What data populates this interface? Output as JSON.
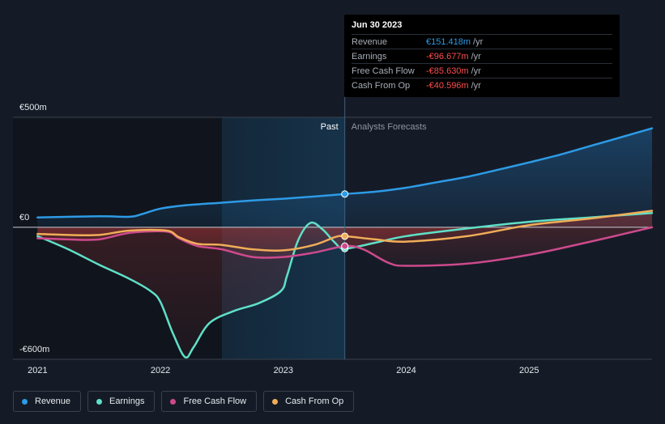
{
  "chart_data": {
    "type": "line",
    "y_tick_labels": [
      "€500m",
      "€0",
      "-€600m"
    ],
    "y_tick_values": [
      500,
      0,
      -600
    ],
    "x_tick_labels": [
      "2021",
      "2022",
      "2023",
      "2024",
      "2025"
    ],
    "x_tick_values": [
      2021,
      2022,
      2023,
      2024,
      2025
    ],
    "xlim": [
      2020.8,
      2026.0
    ],
    "ylim": [
      -600,
      500
    ],
    "past_label": "Past",
    "forecast_label": "Analysts Forecasts",
    "divider_x": 2023.5,
    "past_shade_start": 2022.5,
    "series": [
      {
        "name": "Revenue",
        "color": "#2d9be6",
        "points": [
          [
            2021.0,
            45
          ],
          [
            2021.5,
            50
          ],
          [
            2021.75,
            48
          ],
          [
            2021.85,
            60
          ],
          [
            2022.0,
            85
          ],
          [
            2022.2,
            100
          ],
          [
            2022.5,
            112
          ],
          [
            2022.75,
            122
          ],
          [
            2023.0,
            130
          ],
          [
            2023.25,
            140
          ],
          [
            2023.5,
            151.4
          ],
          [
            2023.75,
            162
          ],
          [
            2024.0,
            180
          ],
          [
            2024.25,
            205
          ],
          [
            2024.5,
            230
          ],
          [
            2024.75,
            262
          ],
          [
            2025.0,
            295
          ],
          [
            2025.25,
            330
          ],
          [
            2025.5,
            370
          ],
          [
            2025.75,
            410
          ],
          [
            2026.0,
            450
          ]
        ]
      },
      {
        "name": "Earnings",
        "color": "#5fe0c8",
        "points": [
          [
            2021.0,
            -40
          ],
          [
            2021.25,
            -100
          ],
          [
            2021.5,
            -170
          ],
          [
            2021.75,
            -235
          ],
          [
            2021.92,
            -290
          ],
          [
            2022.0,
            -340
          ],
          [
            2022.1,
            -480
          ],
          [
            2022.2,
            -590
          ],
          [
            2022.27,
            -545
          ],
          [
            2022.4,
            -435
          ],
          [
            2022.6,
            -380
          ],
          [
            2022.8,
            -345
          ],
          [
            2022.98,
            -290
          ],
          [
            2023.03,
            -220
          ],
          [
            2023.12,
            -60
          ],
          [
            2023.22,
            20
          ],
          [
            2023.32,
            -10
          ],
          [
            2023.42,
            -70
          ],
          [
            2023.5,
            -96.7
          ],
          [
            2023.75,
            -70
          ],
          [
            2024.0,
            -40
          ],
          [
            2024.5,
            -5
          ],
          [
            2025.0,
            25
          ],
          [
            2025.5,
            45
          ],
          [
            2026.0,
            65
          ]
        ]
      },
      {
        "name": "Free Cash Flow",
        "color": "#cc4a8c",
        "points": [
          [
            2021.0,
            -50
          ],
          [
            2021.25,
            -55
          ],
          [
            2021.5,
            -55
          ],
          [
            2021.75,
            -25
          ],
          [
            2022.05,
            -20
          ],
          [
            2022.15,
            -50
          ],
          [
            2022.3,
            -85
          ],
          [
            2022.5,
            -100
          ],
          [
            2022.75,
            -135
          ],
          [
            2023.0,
            -135
          ],
          [
            2023.25,
            -115
          ],
          [
            2023.5,
            -85.6
          ],
          [
            2023.65,
            -100
          ],
          [
            2023.85,
            -160
          ],
          [
            2024.0,
            -175
          ],
          [
            2024.5,
            -165
          ],
          [
            2025.0,
            -125
          ],
          [
            2025.5,
            -65
          ],
          [
            2026.0,
            0
          ]
        ]
      },
      {
        "name": "Cash From Op",
        "color": "#f0ad58",
        "points": [
          [
            2021.0,
            -30
          ],
          [
            2021.25,
            -35
          ],
          [
            2021.5,
            -35
          ],
          [
            2021.75,
            -15
          ],
          [
            2022.05,
            -15
          ],
          [
            2022.15,
            -45
          ],
          [
            2022.3,
            -75
          ],
          [
            2022.5,
            -80
          ],
          [
            2022.75,
            -100
          ],
          [
            2023.0,
            -105
          ],
          [
            2023.25,
            -80
          ],
          [
            2023.42,
            -45
          ],
          [
            2023.5,
            -40.6
          ],
          [
            2023.75,
            -55
          ],
          [
            2024.0,
            -65
          ],
          [
            2024.5,
            -40
          ],
          [
            2025.0,
            10
          ],
          [
            2025.5,
            40
          ],
          [
            2026.0,
            75
          ]
        ]
      }
    ],
    "highlight_x": 2023.5
  },
  "tooltip": {
    "date": "Jun 30 2023",
    "rows": [
      {
        "name": "Revenue",
        "value": "€151.418m",
        "unit": "/yr",
        "color": "#2d9be6"
      },
      {
        "name": "Earnings",
        "value": "-€96.677m",
        "unit": "/yr",
        "color": "#ff4d4d"
      },
      {
        "name": "Free Cash Flow",
        "value": "-€85.630m",
        "unit": "/yr",
        "color": "#ff4d4d"
      },
      {
        "name": "Cash From Op",
        "value": "-€40.596m",
        "unit": "/yr",
        "color": "#ff4d4d"
      }
    ]
  },
  "legend": [
    {
      "label": "Revenue",
      "color": "#2d9be6"
    },
    {
      "label": "Earnings",
      "color": "#5fe0c8"
    },
    {
      "label": "Free Cash Flow",
      "color": "#cc4a8c"
    },
    {
      "label": "Cash From Op",
      "color": "#f0ad58"
    }
  ]
}
